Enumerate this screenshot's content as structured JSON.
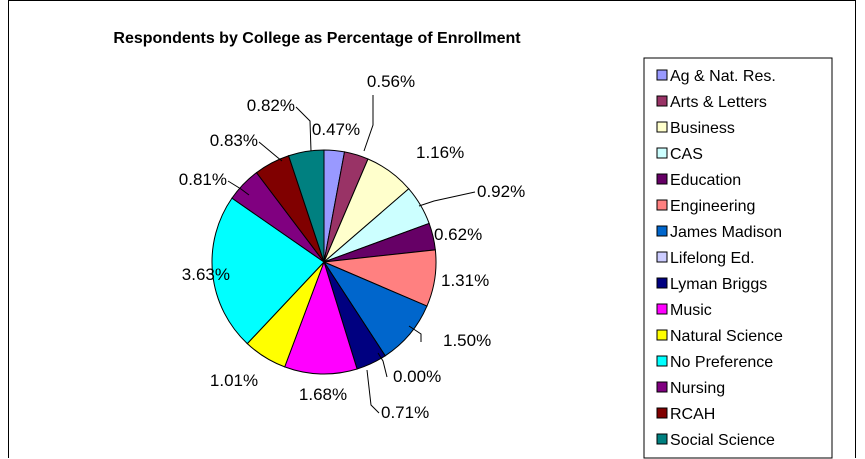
{
  "chart_data": {
    "type": "pie",
    "title": "Respondents by College as Percentage of Enrollment",
    "categories": [
      "Ag & Nat. Res.",
      "Arts & Letters",
      "Business",
      "CAS",
      "Education",
      "Engineering",
      "James Madison",
      "Lifelong Ed.",
      "Lyman Briggs",
      "Music",
      "Natural Science",
      "No Preference",
      "Nursing",
      "RCAH",
      "Social Science"
    ],
    "values": [
      0.47,
      0.56,
      1.16,
      0.92,
      0.62,
      1.31,
      1.5,
      0.0,
      0.71,
      1.68,
      1.01,
      3.63,
      0.81,
      0.83,
      0.82
    ],
    "labels": [
      "0.47%",
      "0.56%",
      "1.16%",
      "0.92%",
      "0.62%",
      "1.31%",
      "1.50%",
      "0.00%",
      "0.71%",
      "1.68%",
      "1.01%",
      "3.63%",
      "0.81%",
      "0.83%",
      "0.82%"
    ],
    "colors": [
      "#9999FF",
      "#993366",
      "#FFFFCC",
      "#CCFFFF",
      "#660066",
      "#FF8080",
      "#0066CC",
      "#CCCCFF",
      "#000080",
      "#FF00FF",
      "#FFFF00",
      "#00FFFF",
      "#800080",
      "#800000",
      "#008080"
    ],
    "legend_position": "right"
  }
}
